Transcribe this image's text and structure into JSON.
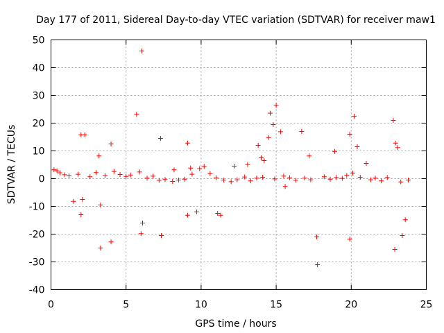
{
  "chart_data": {
    "type": "scatter",
    "title": "Day 177 of 2011, Sidereal Day-to-day VTEC variation (SDTVAR) for receiver maw1",
    "xlabel": "GPS time / hours",
    "ylabel": "SDTVAR / TECUs",
    "xlim": [
      0,
      25
    ],
    "ylim": [
      -40,
      50
    ],
    "xticks": [
      "0",
      "5",
      "10",
      "15",
      "20",
      "25"
    ],
    "yticks": [
      "-40",
      "-30",
      "-20",
      "-10",
      "0",
      "10",
      "20",
      "30",
      "40",
      "50"
    ],
    "grid": true,
    "marker": "+",
    "series": [
      {
        "name": "SDTVAR",
        "color": "#ff0000",
        "x": [
          6.05,
          5.7,
          3.3,
          15.0,
          14.6,
          14.8,
          20.2,
          22.8,
          7.3,
          9.1,
          2.0,
          2.25,
          16.7,
          15.3,
          2.0,
          4.0,
          19.9,
          13.8,
          14.5,
          6.1,
          6.0,
          7.35,
          4.0,
          3.2,
          9.1,
          9.7,
          11.1,
          11.3,
          17.7,
          17.75,
          19.9,
          22.95,
          23.1,
          22.9,
          20.4,
          21.0,
          23.6,
          23.4,
          3.3,
          1.5,
          2.1,
          0.2,
          0.4,
          0.6,
          0.9,
          1.2,
          1.8,
          2.6,
          3.0,
          3.6,
          4.2,
          4.6,
          5.0,
          5.3,
          5.9,
          6.4,
          6.8,
          7.2,
          7.6,
          8.1,
          8.5,
          8.9,
          9.4,
          9.9,
          10.2,
          10.6,
          11.0,
          11.5,
          12.0,
          12.4,
          12.9,
          13.3,
          13.7,
          14.1,
          14.9,
          15.5,
          15.9,
          16.3,
          16.9,
          17.3,
          18.2,
          18.6,
          19.0,
          19.4,
          19.7,
          20.1,
          20.6,
          21.3,
          21.6,
          22.0,
          22.4,
          23.3,
          23.8,
          14.2,
          14.0,
          18.9,
          17.2,
          15.6,
          13.1,
          12.2,
          9.3,
          8.2
        ],
        "y": [
          46,
          23.2,
          -25,
          26.4,
          23.6,
          19.5,
          22.5,
          21,
          14.5,
          12.8,
          15.8,
          15.8,
          17,
          16.9,
          -13,
          -22.8,
          -21.8,
          12,
          14.8,
          -16,
          -19.8,
          -20.5,
          12.5,
          8.2,
          -13.2,
          -12,
          -12.5,
          -13.2,
          -21,
          -31,
          16,
          12.8,
          11.2,
          -25.5,
          11.5,
          5.5,
          -14.8,
          -20.5,
          -9.5,
          -8.2,
          -7.5,
          3.2,
          2.8,
          2.1,
          1.4,
          1.0,
          1.6,
          0.7,
          2.2,
          1.1,
          2.6,
          1.5,
          0.8,
          1.3,
          2.4,
          0.2,
          0.9,
          -0.6,
          -0.3,
          -1.0,
          -0.5,
          -0.2,
          1.6,
          3.6,
          4.4,
          1.8,
          0.3,
          -0.5,
          -1.1,
          -0.4,
          0.6,
          -0.8,
          0.2,
          0.5,
          -0.1,
          0.9,
          0.3,
          -0.6,
          0.2,
          -0.4,
          0.7,
          -0.2,
          0.4,
          0.1,
          1.2,
          2.0,
          0.5,
          -0.4,
          0.2,
          -0.8,
          0.4,
          -1.2,
          -0.5,
          6.5,
          7.5,
          9.8,
          8.2,
          -2.8,
          5.1,
          4.5,
          3.8,
          3.2
        ]
      }
    ]
  }
}
